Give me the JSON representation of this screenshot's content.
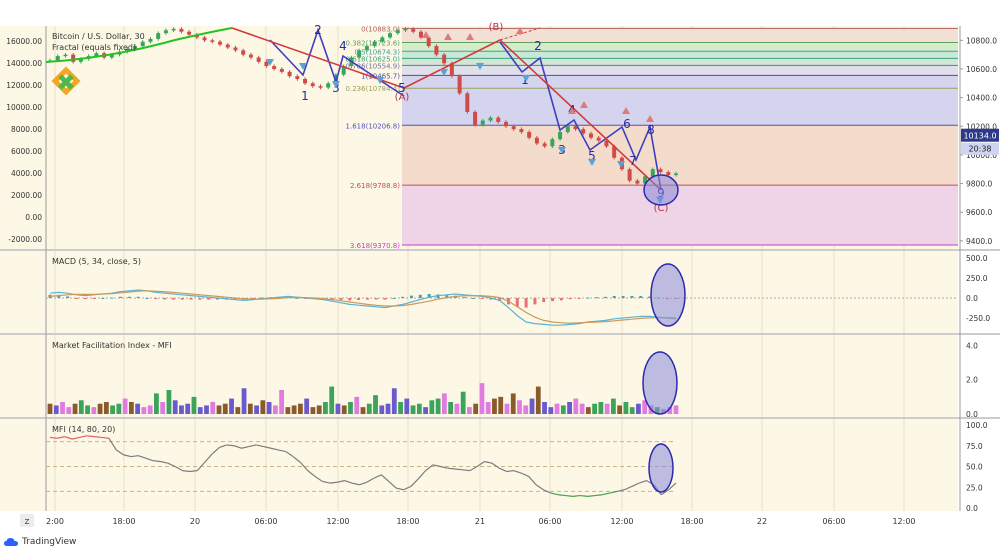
{
  "header": {
    "symbol_title": "Bitcoin / U.S. Dollar, 30",
    "indicator_title": "Fractal (equals fixed)"
  },
  "colors": {
    "panel_bg": "#fdf8e6",
    "axis_bg": "#ffffff",
    "grid": "#e6e0c8",
    "candle_up": "#3aa45a",
    "candle_down": "#d14a4a",
    "wave_line": "#3f3fbf",
    "trend_line": "#d43a3a",
    "macd_line": "#5bb4d6",
    "signal_line": "#c99a5a",
    "mfi_line": "#7b7b7b",
    "mfi_low": "#43a047",
    "mfi_high": "#e06060",
    "highlight_fill": "#8888d8",
    "highlight_stroke": "#2b2bb0",
    "price_badge": "#2d3a8a",
    "logo_green": "#52b848",
    "logo_orange": "#f5a623"
  },
  "price_axis_left": [
    "16000.00",
    "14000.00",
    "12000.00",
    "10000.00",
    "8000.00",
    "6000.00",
    "4000.00",
    "2000.00",
    "0.00",
    "-2000.00"
  ],
  "price_axis_right": [
    "10800.0",
    "10600.0",
    "10400.0",
    "10200.0",
    "10000.0",
    "9800.0",
    "9600.0",
    "9400.0"
  ],
  "price_badge": {
    "value": "10134.0",
    "countdown": "20:38"
  },
  "fib_levels": [
    {
      "label": "0(10883.0)",
      "band": "#f3e0d4"
    },
    {
      "label": "0.236(10784.4)",
      "band": "#e3ecd0"
    },
    {
      "label": "0.382(10723.6)",
      "band": "#d4ecc8"
    },
    {
      "label": "0.5(10674.3)",
      "band": "#c8e8d8"
    },
    {
      "label": "0.618(10625.0)",
      "band": "#d2e6d6"
    },
    {
      "label": "0.786(10554.9)",
      "band": "#e0e0ea"
    },
    {
      "label": "1(10465.7)",
      "band": "#d4d4ee"
    },
    {
      "label": "1.618(10206.8)",
      "band": "#f4dccc"
    },
    {
      "label": "2.618(9788.8)",
      "band": "#efd3e6"
    },
    {
      "label": "3.618(9370.8)",
      "band": ""
    }
  ],
  "wave_labels": [
    "2",
    "1",
    "4",
    "3",
    "5",
    "(A)",
    "(B)",
    "2",
    "1",
    "4",
    "3",
    "5",
    "6",
    "7",
    "8",
    "9",
    "(C)"
  ],
  "macd": {
    "title": "MACD (5, 34, close, 5)",
    "ticks": [
      "500.0",
      "250.0",
      "0.0",
      "-250.0"
    ]
  },
  "bw_mfi": {
    "title": "Market Facilitation Index - MFI",
    "ticks": [
      "4.0",
      "2.0",
      "0.0"
    ]
  },
  "mfi": {
    "title": "MFI (14, 80, 20)",
    "ticks": [
      "100.0",
      "75.0",
      "50.0",
      "25.0",
      "0.0"
    ]
  },
  "time_axis": {
    "corner": "Z",
    "ticks": [
      "2:00",
      "18:00",
      "20",
      "06:00",
      "12:00",
      "18:00",
      "21",
      "06:00",
      "12:00",
      "18:00",
      "22",
      "06:00",
      "12:00"
    ]
  },
  "footer": {
    "brand": "TradingView"
  },
  "chart_data": {
    "type": "candlestick",
    "series": [
      {
        "name": "Bitcoin / U.S. Dollar, 30",
        "close": [
          10660,
          10690,
          10700,
          10650,
          10670,
          10690,
          10710,
          10680,
          10700,
          10720,
          10740,
          10760,
          10790,
          10810,
          10850,
          10870,
          10880,
          10860,
          10840,
          10820,
          10800,
          10790,
          10770,
          10750,
          10730,
          10700,
          10680,
          10650,
          10620,
          10600,
          10580,
          10550,
          10530,
          10500,
          10480,
          10470,
          10500,
          10560,
          10620,
          10680,
          10730,
          10760,
          10790,
          10820,
          10850,
          10870,
          10880,
          10860,
          10820,
          10760,
          10700,
          10640,
          10550,
          10430,
          10300,
          10210,
          10240,
          10260,
          10230,
          10200,
          10180,
          10160,
          10120,
          10080,
          10060,
          10110,
          10160,
          10200,
          10180,
          10150,
          10120,
          10100,
          10060,
          9980,
          9900,
          9820,
          9800,
          9850,
          9900,
          9880,
          9860,
          9870
        ]
      }
    ],
    "ylim": [
      9350,
      10900
    ],
    "fibonacci": {
      "0": 10883.0,
      "0.236": 10784.4,
      "0.382": 10723.6,
      "0.5": 10674.3,
      "0.618": 10625.0,
      "0.786": 10554.9,
      "1": 10465.7,
      "1.618": 10206.8,
      "2.618": 9788.8,
      "3.618": 9370.8
    },
    "last_price": 10134.0,
    "macd": {
      "ylim": [
        -400,
        500
      ],
      "macd": [
        60,
        70,
        60,
        40,
        30,
        40,
        50,
        60,
        80,
        90,
        100,
        90,
        70,
        60,
        50,
        40,
        30,
        20,
        10,
        0,
        -10,
        -20,
        -30,
        -20,
        -10,
        0,
        10,
        20,
        10,
        0,
        -10,
        -20,
        -40,
        -60,
        -80,
        -90,
        -100,
        -110,
        -120,
        -100,
        -80,
        -50,
        -20,
        10,
        30,
        40,
        50,
        40,
        30,
        20,
        0,
        -30,
        -120,
        -220,
        -300,
        -320,
        -330,
        -340,
        -340,
        -330,
        -320,
        -300,
        -290,
        -280,
        -260,
        -250,
        -240,
        -230,
        -230,
        -240,
        -250,
        -260
      ],
      "signal": [
        20,
        30,
        40,
        45,
        45,
        45,
        50,
        55,
        65,
        75,
        85,
        90,
        85,
        78,
        70,
        60,
        50,
        40,
        30,
        20,
        10,
        0,
        -10,
        -15,
        -15,
        -10,
        -5,
        5,
        8,
        5,
        0,
        -8,
        -20,
        -35,
        -50,
        -65,
        -80,
        -92,
        -100,
        -100,
        -95,
        -80,
        -60,
        -40,
        -15,
        5,
        20,
        28,
        30,
        28,
        20,
        5,
        -40,
        -110,
        -180,
        -240,
        -280,
        -300,
        -310,
        -315,
        -310,
        -305,
        -300,
        -295,
        -285,
        -275,
        -265,
        -255,
        -248,
        -245,
        -246,
        -250
      ]
    },
    "market_facilitation_index": {
      "ylim": [
        0,
        4.2
      ],
      "values": [
        0.6,
        0.5,
        0.7,
        0.4,
        0.6,
        0.8,
        0.5,
        0.4,
        0.6,
        0.7,
        0.5,
        0.6,
        0.9,
        0.7,
        0.6,
        0.4,
        0.5,
        1.2,
        0.7,
        1.4,
        0.8,
        0.5,
        0.6,
        1.0,
        0.4,
        0.5,
        0.7,
        0.5,
        0.6,
        0.9,
        0.4,
        1.5,
        0.6,
        0.5,
        0.8,
        0.7,
        0.5,
        1.4,
        0.4,
        0.5,
        0.6,
        0.9,
        0.4,
        0.5,
        0.7,
        1.6,
        0.6,
        0.5,
        0.7,
        1.0,
        0.4,
        0.6,
        1.1,
        0.5,
        0.6,
        1.5,
        0.7,
        0.9,
        0.5,
        0.6,
        0.4,
        0.8,
        0.9,
        1.2,
        0.7,
        0.6,
        1.3,
        0.4,
        0.6,
        1.8,
        0.7,
        0.9,
        1.0,
        0.6,
        1.2,
        0.8,
        0.5,
        0.9,
        1.6,
        0.7,
        0.4,
        0.6,
        0.5,
        0.7,
        0.9,
        0.6,
        0.4,
        0.6,
        0.7,
        0.6,
        0.9,
        0.5,
        0.7,
        0.4,
        0.6,
        0.8,
        0.5,
        0.4,
        0.3,
        0.4,
        0.5
      ]
    },
    "mfi": {
      "ylim": [
        0,
        100
      ],
      "overbought": 80,
      "oversold": 20,
      "values": [
        85,
        84,
        86,
        83,
        85,
        87,
        86,
        85,
        84,
        70,
        64,
        62,
        63,
        60,
        57,
        56,
        54,
        50,
        45,
        44,
        45,
        55,
        65,
        73,
        76,
        75,
        72,
        74,
        76,
        74,
        72,
        70,
        68,
        62,
        55,
        45,
        38,
        32,
        30,
        31,
        33,
        30,
        28,
        31,
        36,
        40,
        32,
        24,
        22,
        26,
        35,
        45,
        52,
        50,
        48,
        47,
        46,
        45,
        50,
        56,
        54,
        48,
        44,
        45,
        42,
        38,
        28,
        22,
        18,
        16,
        15,
        14,
        15,
        14,
        15,
        16,
        18,
        20,
        22,
        26,
        30,
        33,
        28,
        16,
        22,
        30
      ]
    }
  }
}
